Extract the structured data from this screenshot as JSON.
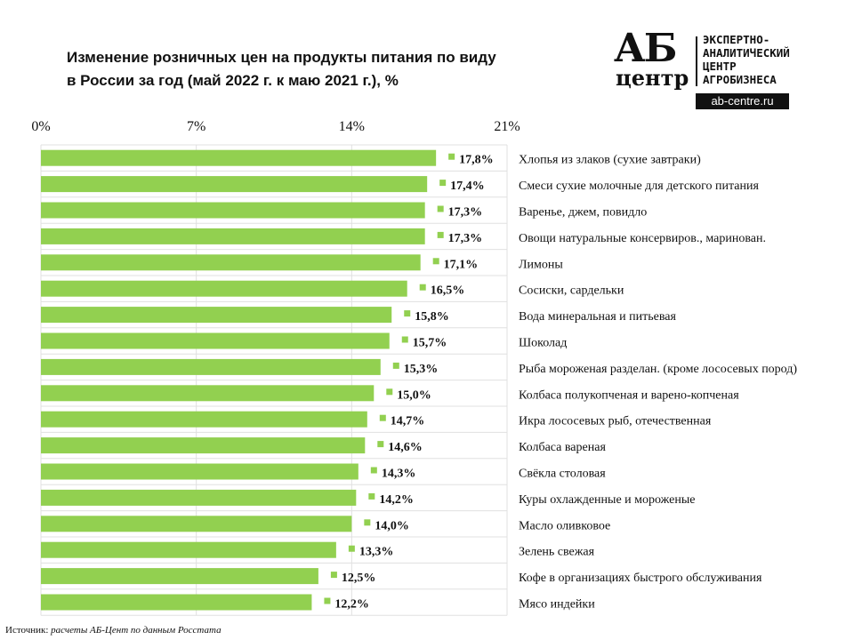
{
  "title_line1": "Изменение розничных цен на продукты питания по виду",
  "title_line2": "в России за год (май 2022 г. к маю 2021 г.), %",
  "logo": {
    "mark_top": "АБ",
    "mark_bottom": "центр",
    "text": [
      "ЭКСПЕРТНО-",
      "АНАЛИТИЧЕСКИЙ",
      "ЦЕНТР",
      "АГРОБИЗНЕСА"
    ],
    "url": "ab-centre.ru"
  },
  "source_label": "Источник:",
  "source_text": "расчеты АБ-Цент по данным Росстата",
  "chart_data": {
    "type": "bar",
    "orientation": "horizontal",
    "title": "Изменение розничных цен на продукты питания по виду в России за год (май 2022 г. к маю 2021 г.), %",
    "xlim": [
      0,
      21
    ],
    "xticks": [
      0,
      7,
      14,
      21
    ],
    "xtick_labels": [
      "0%",
      "7%",
      "14%",
      "21%"
    ],
    "x_axis_position": "top",
    "grid": true,
    "bar_color": "#92d050",
    "categories": [
      "Хлопья из злаков (сухие завтраки)",
      "Смеси сухие молочные для детского питания",
      "Варенье, джем, повидло",
      "Овощи натуральные консервиров., маринован.",
      "Лимоны",
      "Сосиски, сардельки",
      "Вода минеральная и питьевая",
      "Шоколад",
      "Рыба мороженая разделан. (кроме лососевых пород)",
      "Колбаса полукопченая и варено-копченая",
      "Икра лососевых рыб, отечественная",
      "Колбаса вареная",
      "Свёкла столовая",
      "Куры охлажденные и мороженые",
      "Масло оливковое",
      "Зелень свежая",
      "Кофе в организациях быстрого обслуживания",
      "Мясо индейки"
    ],
    "values": [
      17.8,
      17.4,
      17.3,
      17.3,
      17.1,
      16.5,
      15.8,
      15.7,
      15.3,
      15.0,
      14.7,
      14.6,
      14.3,
      14.2,
      14.0,
      13.3,
      12.5,
      12.2
    ],
    "value_labels": [
      "17,8%",
      "17,4%",
      "17,3%",
      "17,3%",
      "17,1%",
      "16,5%",
      "15,8%",
      "15,7%",
      "15,3%",
      "15,0%",
      "14,7%",
      "14,6%",
      "14,3%",
      "14,2%",
      "14,0%",
      "13,3%",
      "12,5%",
      "12,2%"
    ]
  }
}
